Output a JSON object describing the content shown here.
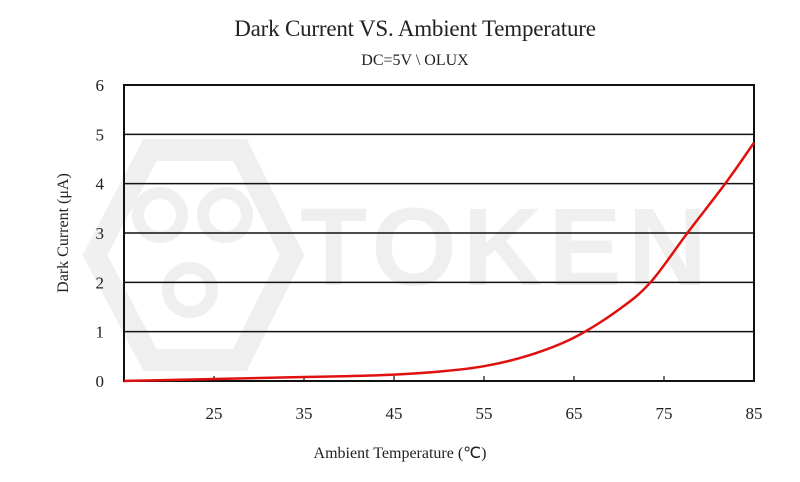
{
  "chart_data": {
    "type": "line",
    "title": "Dark Current VS. Ambient Temperature",
    "subtitle": "DC=5V \\ OLUX",
    "xlabel": "Ambient Temperature (℃)",
    "ylabel": "Dark Current (μA)",
    "xlim": [
      15,
      85
    ],
    "ylim": [
      0,
      6
    ],
    "x_ticks": [
      25,
      35,
      45,
      55,
      65,
      75,
      85
    ],
    "y_ticks": [
      0,
      1,
      2,
      3,
      4,
      5,
      6
    ],
    "grid": "horizontal",
    "legend": "none",
    "watermark": "TOKEN",
    "series": [
      {
        "name": "Dark Current",
        "color": "#e01010",
        "x": [
          15,
          20,
          25,
          30,
          35,
          40,
          45,
          50,
          55,
          60,
          65,
          70,
          73.5,
          77.6,
          81.8,
          85
        ],
        "values": [
          0.0,
          0.02,
          0.04,
          0.06,
          0.08,
          0.1,
          0.13,
          0.19,
          0.3,
          0.52,
          0.88,
          1.45,
          2.0,
          3.0,
          4.0,
          4.83
        ]
      }
    ]
  }
}
